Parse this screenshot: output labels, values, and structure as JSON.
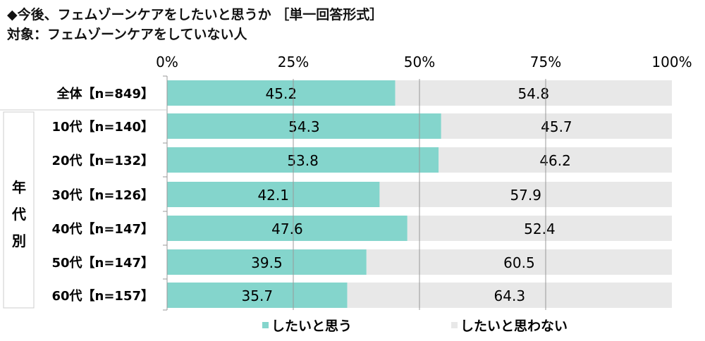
{
  "chart_data": {
    "type": "bar",
    "stacked": true,
    "orientation": "horizontal",
    "title": "◆今後、フェムゾーンケアをしたいと思うか ［単一回答形式］",
    "subtitle": "対象：フェムゾーンケアをしていない人",
    "group_label": "年代別",
    "categories": [
      "全体【n=849】",
      "10代【n=140】",
      "20代【n=132】",
      "30代【n=126】",
      "40代【n=147】",
      "50代【n=147】",
      "60代【n=157】"
    ],
    "series": [
      {
        "name": "したいと思う",
        "color": "#84d5cc",
        "values": [
          45.2,
          54.3,
          53.8,
          42.1,
          47.6,
          39.5,
          35.7
        ]
      },
      {
        "name": "したいと思わない",
        "color": "#e8e8e8",
        "values": [
          54.8,
          45.7,
          46.2,
          57.9,
          52.4,
          60.5,
          64.3
        ]
      }
    ],
    "xticks": [
      "0%",
      "25%",
      "50%",
      "75%",
      "100%"
    ],
    "xlim": [
      0,
      100
    ],
    "legend": "bottom"
  }
}
